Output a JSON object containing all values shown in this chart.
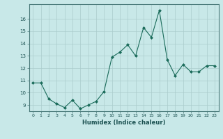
{
  "x": [
    0,
    1,
    2,
    3,
    4,
    5,
    6,
    7,
    8,
    9,
    10,
    11,
    12,
    13,
    14,
    15,
    16,
    17,
    18,
    19,
    20,
    21,
    22,
    23
  ],
  "y": [
    10.8,
    10.8,
    9.5,
    9.1,
    8.8,
    9.4,
    8.7,
    9.0,
    9.3,
    10.1,
    12.9,
    13.3,
    13.9,
    13.0,
    15.3,
    14.5,
    16.7,
    12.7,
    11.4,
    12.3,
    11.7,
    11.7,
    12.2,
    12.2
  ],
  "xlabel": "Humidex (Indice chaleur)",
  "xlim": [
    -0.5,
    23.5
  ],
  "ylim": [
    8.5,
    17.2
  ],
  "yticks": [
    9,
    10,
    11,
    12,
    13,
    14,
    15,
    16
  ],
  "xticks": [
    0,
    1,
    2,
    3,
    4,
    5,
    6,
    7,
    8,
    9,
    10,
    11,
    12,
    13,
    14,
    15,
    16,
    17,
    18,
    19,
    20,
    21,
    22,
    23
  ],
  "line_color": "#1a6b5a",
  "marker_color": "#1a6b5a",
  "bg_color": "#c8e8e8",
  "grid_color": "#aacccc",
  "spine_color": "#4a7a7a"
}
